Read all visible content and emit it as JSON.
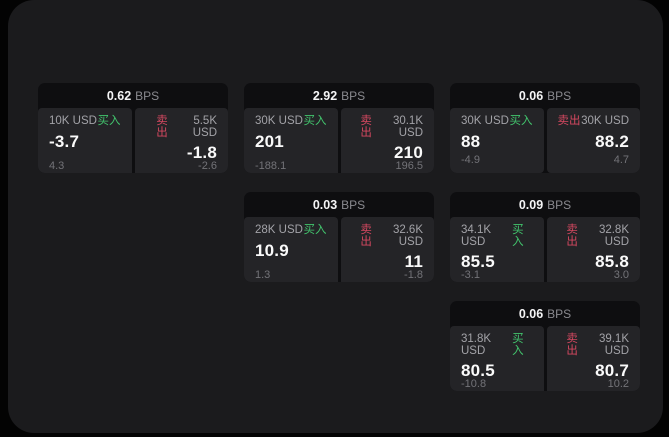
{
  "labels": {
    "bps_unit": "BPS",
    "buy": "买入",
    "sell": "卖出"
  },
  "colors": {
    "background": "#030303",
    "panel": "#1b1b1d",
    "card_header": "#0e0e10",
    "pane": "#242427",
    "buy_accent": "#42c46d",
    "sell_accent": "#d54860"
  },
  "cards": [
    {
      "bps": "0.62",
      "buy": {
        "amount": "10K USD",
        "price": "-3.7",
        "sub": "4.3"
      },
      "sell": {
        "amount": "5.5K USD",
        "price": "-1.8",
        "sub": "-2.6"
      }
    },
    {
      "bps": "2.92",
      "buy": {
        "amount": "30K USD",
        "price": "201",
        "sub": "-188.1"
      },
      "sell": {
        "amount": "30.1K USD",
        "price": "210",
        "sub": "196.5"
      }
    },
    {
      "bps": "0.06",
      "buy": {
        "amount": "30K USD",
        "price": "88",
        "sub": "-4.9"
      },
      "sell": {
        "amount": "30K USD",
        "price": "88.2",
        "sub": "4.7"
      }
    },
    {
      "bps": "0.03",
      "buy": {
        "amount": "28K USD",
        "price": "10.9",
        "sub": "1.3"
      },
      "sell": {
        "amount": "32.6K USD",
        "price": "11",
        "sub": "-1.8"
      }
    },
    {
      "bps": "0.09",
      "buy": {
        "amount": "34.1K USD",
        "price": "85.5",
        "sub": "-3.1"
      },
      "sell": {
        "amount": "32.8K USD",
        "price": "85.8",
        "sub": "3.0"
      }
    },
    {
      "bps": "0.06",
      "buy": {
        "amount": "31.8K USD",
        "price": "80.5",
        "sub": "-10.8"
      },
      "sell": {
        "amount": "39.1K USD",
        "price": "80.7",
        "sub": "10.2"
      }
    }
  ]
}
